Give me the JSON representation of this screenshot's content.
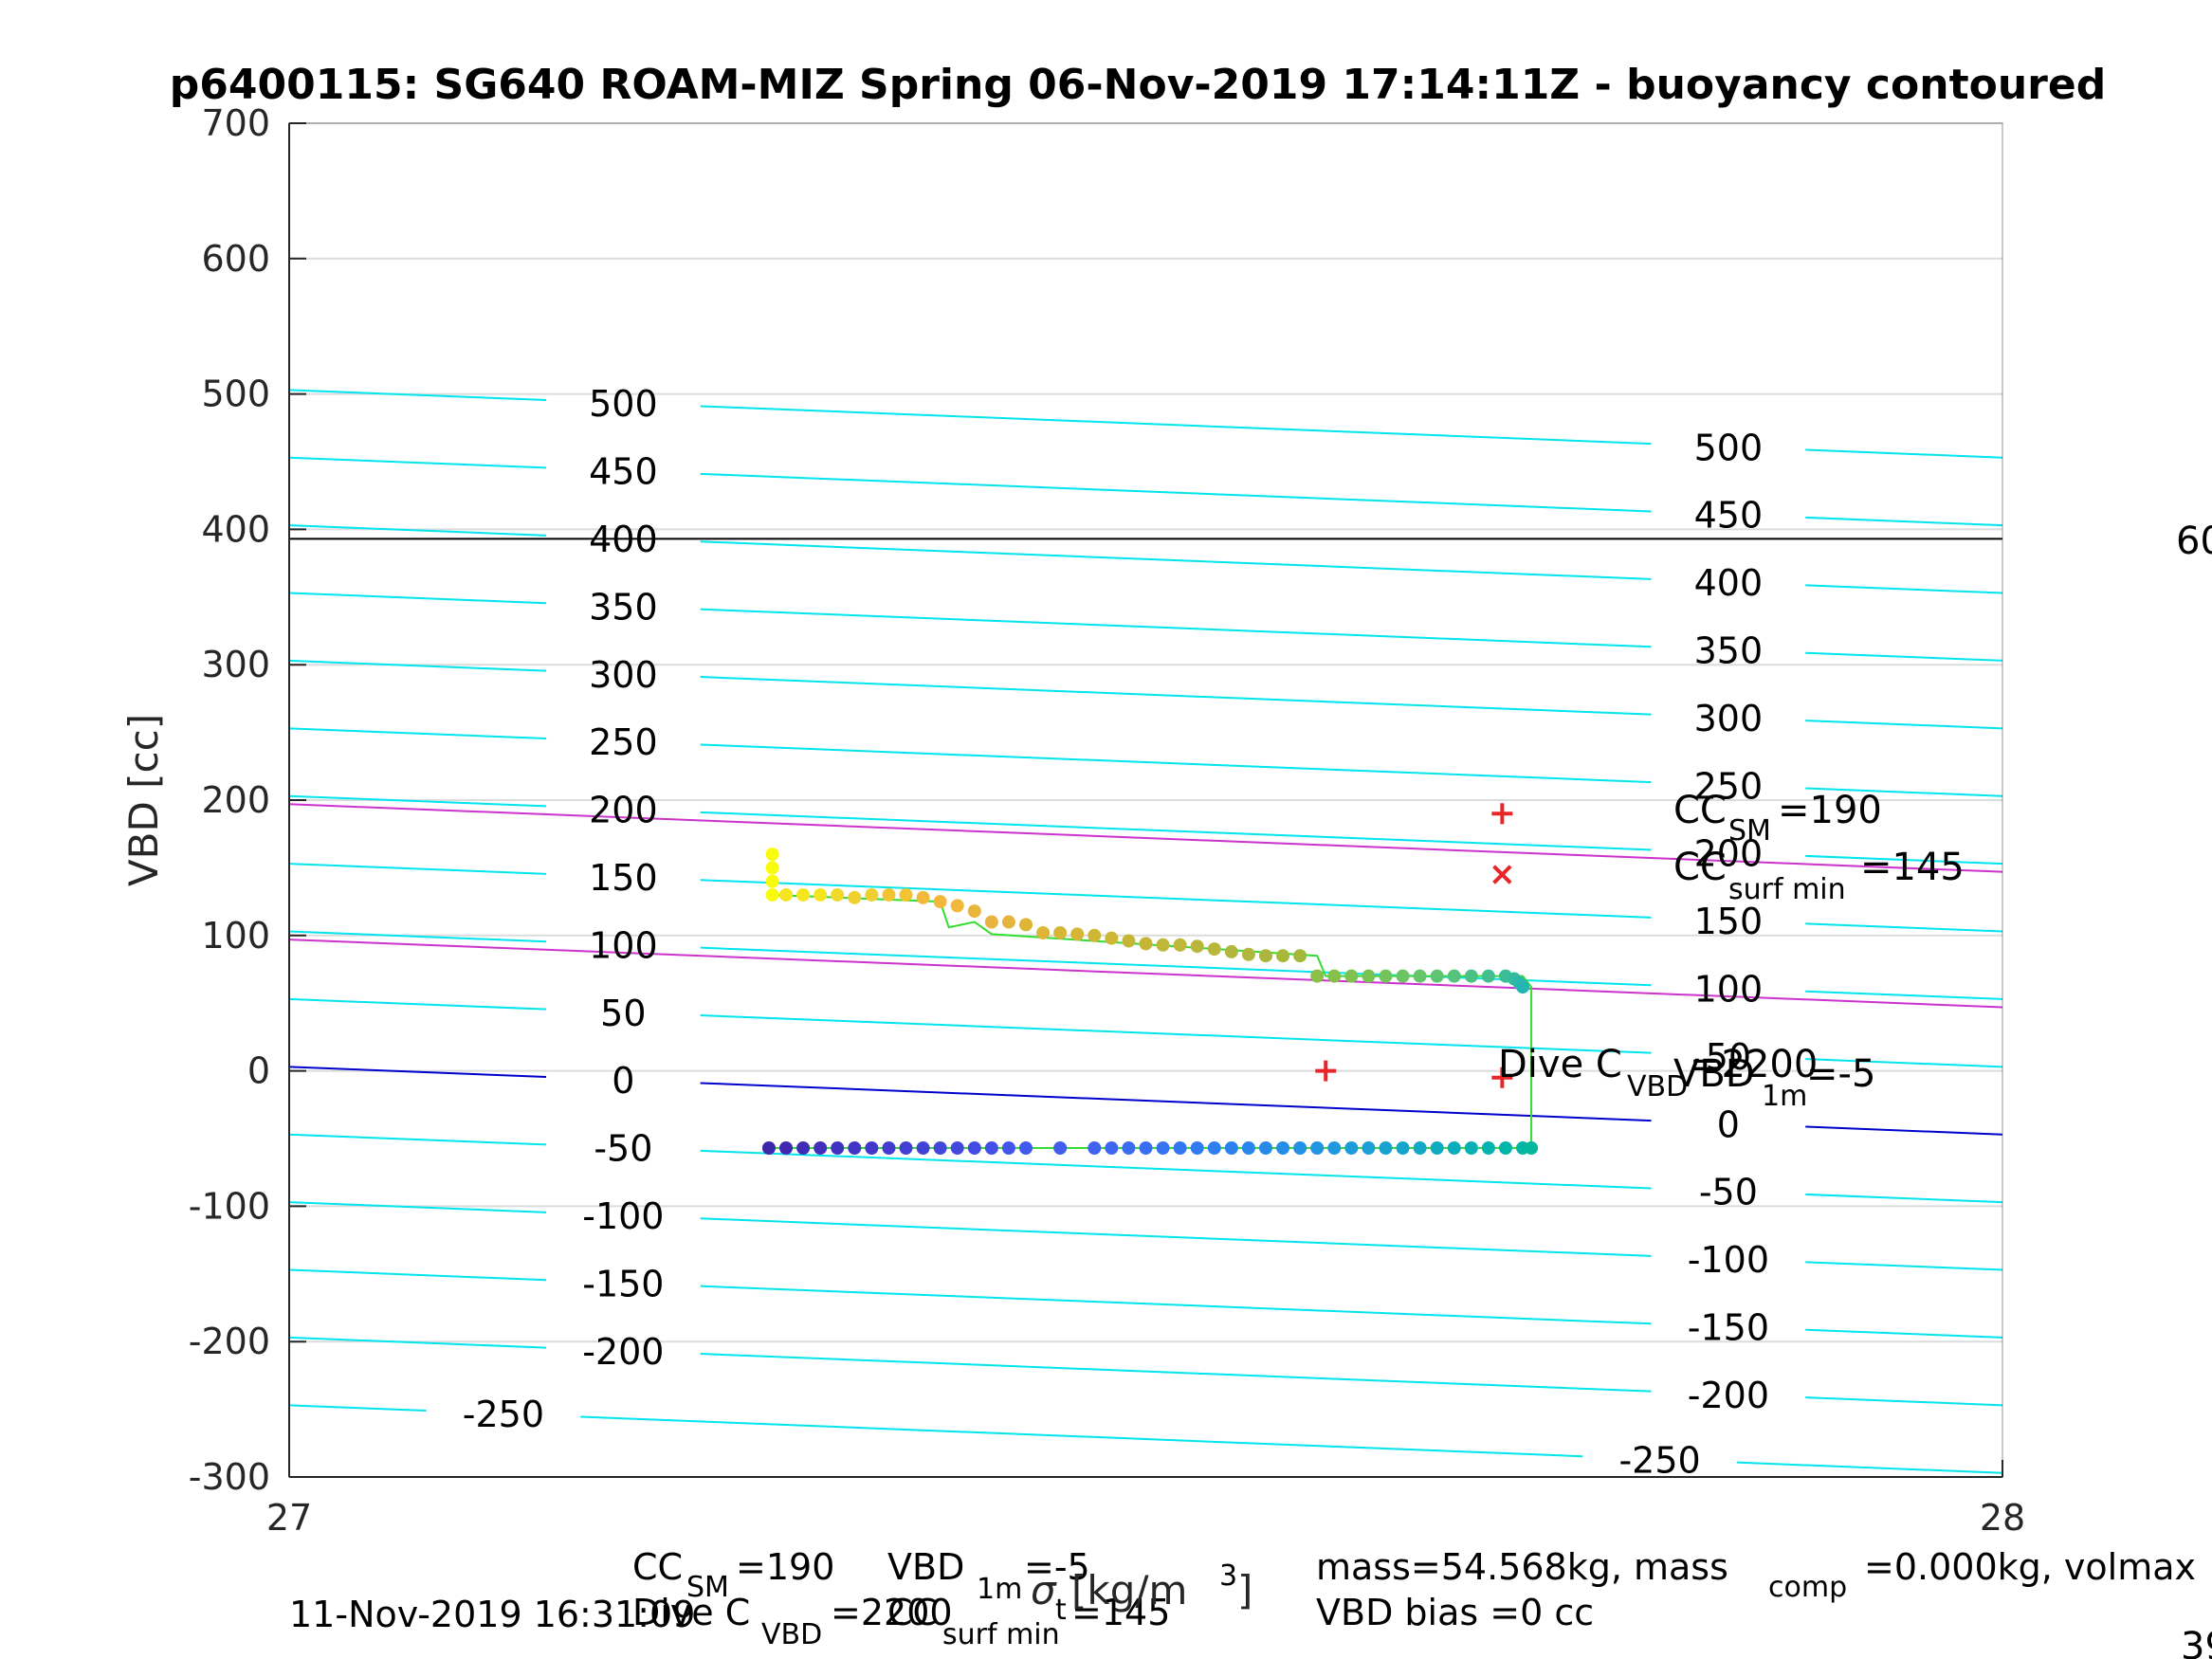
{
  "chart_data": {
    "type": "scatter",
    "title": "p6400115: SG640 ROAM-MIZ Spring 06-Nov-2019 17:14:11Z - buoyancy contoured",
    "xlabel_parts": {
      "main": "σ",
      "sub": "t",
      "unit": "[kg/m",
      "sup": "3",
      "close": "]"
    },
    "ylabel": "VBD [cc]",
    "xlim": [
      27,
      28
    ],
    "ylim": [
      -300,
      700
    ],
    "xticks": [
      "27",
      "28"
    ],
    "yticks": [
      "-300",
      "-200",
      "-100",
      "0",
      "100",
      "200",
      "300",
      "400",
      "500",
      "600",
      "700"
    ],
    "grid": true,
    "colors": {
      "buoyancy_contour": "#00e5ee",
      "neutral_contour": "#0000cc",
      "cc_contour": "#cc33cc",
      "vbd_max_line": "#000000",
      "trace_line": "#33dd33",
      "marker": "#e8262a"
    },
    "buoyancy_contours": {
      "levels": [
        -250,
        -200,
        -150,
        -100,
        -50,
        0,
        50,
        100,
        150,
        200,
        250,
        300,
        350,
        400,
        450,
        500
      ],
      "vbd_at_x27": [
        -247,
        -197,
        -147,
        -97,
        -47,
        3,
        53,
        103,
        153,
        203,
        253,
        303,
        353,
        403,
        453,
        503
      ],
      "vbd_at_x28": [
        -297,
        -247,
        -197,
        -147,
        -97,
        -47,
        3,
        53,
        103,
        153,
        203,
        253,
        303,
        353,
        403,
        453
      ],
      "labels_left": [
        "-250",
        "-200",
        "-150",
        "-100",
        "-50",
        "0",
        "50",
        "100",
        "150",
        "200",
        "250",
        "300",
        "350",
        "400",
        "450",
        "500"
      ],
      "labels_right": [
        "-250",
        "-200",
        "-150",
        "-100",
        "-50",
        "0",
        "50",
        "100",
        "150",
        "200",
        "250",
        "300",
        "350",
        "400",
        "450",
        "500"
      ]
    },
    "cc_contours": {
      "vbd_at_x27": [
        197,
        97
      ],
      "vbd_at_x28": [
        147,
        47
      ]
    },
    "vbd_max_line": {
      "vbd": 393
    },
    "markers": [
      {
        "shape": "+",
        "x": 27.708,
        "y": 190
      },
      {
        "shape": "x",
        "x": 27.708,
        "y": 145
      },
      {
        "shape": "+",
        "x": 27.605,
        "y": 0
      },
      {
        "shape": "+",
        "x": 27.708,
        "y": -5
      }
    ],
    "ascent_series": {
      "name": "ascent",
      "x": [
        27.282,
        27.282,
        27.282,
        27.282,
        27.29,
        27.3,
        27.31,
        27.32,
        27.33,
        27.34,
        27.35,
        27.36,
        27.37,
        27.38,
        27.39,
        27.4,
        27.41,
        27.42,
        27.43,
        27.44,
        27.45,
        27.46,
        27.47,
        27.48,
        27.49,
        27.5,
        27.51,
        27.52,
        27.53,
        27.54,
        27.55,
        27.56,
        27.57,
        27.58,
        27.59,
        27.6,
        27.61,
        27.62,
        27.63,
        27.64,
        27.65,
        27.66,
        27.67,
        27.68,
        27.69,
        27.7,
        27.71,
        27.715,
        27.718,
        27.72
      ],
      "y": [
        160,
        150,
        140,
        130,
        130,
        130,
        130,
        130,
        128,
        130,
        130,
        130,
        128,
        125,
        122,
        118,
        110,
        110,
        108,
        102,
        102,
        101,
        100,
        98,
        96,
        94,
        93,
        93,
        92,
        90,
        88,
        86,
        85,
        85,
        85,
        70,
        70,
        70,
        70,
        70,
        70,
        70,
        70,
        70,
        70,
        70,
        70,
        68,
        65,
        62
      ],
      "colors": [
        "#f9fb0e",
        "#f9fb0e",
        "#f9fb0e",
        "#f9fb0e",
        "#f5e51f",
        "#f5e51f",
        "#f5e51f",
        "#f1d82a",
        "#f1cf30",
        "#f1cf30",
        "#f3c331",
        "#f3c331",
        "#f1b839",
        "#f1b839",
        "#f1b839",
        "#eab53c",
        "#e8b33f",
        "#e4b43c",
        "#ddb537",
        "#ddb537",
        "#d5b636",
        "#d5b636",
        "#ceb637",
        "#ceb637",
        "#c6b638",
        "#c6b638",
        "#bfb73a",
        "#bfb73a",
        "#b8b63b",
        "#b8b63b",
        "#b1b63c",
        "#b1b63c",
        "#aab63c",
        "#a7b83a",
        "#a4b93b",
        "#8bbf47",
        "#86c04b",
        "#80c150",
        "#79c355",
        "#73c45b",
        "#6dc462",
        "#66c46a",
        "#5ec472",
        "#55c37b",
        "#4cc184",
        "#43bf8d",
        "#3bbd96",
        "#33bb9f",
        "#2bb8a8",
        "#24b4b1"
      ]
    },
    "descent_series": {
      "name": "descent",
      "x": [
        27.28,
        27.29,
        27.3,
        27.31,
        27.32,
        27.33,
        27.34,
        27.35,
        27.36,
        27.37,
        27.38,
        27.39,
        27.4,
        27.41,
        27.42,
        27.43,
        27.45,
        27.47,
        27.48,
        27.49,
        27.5,
        27.51,
        27.52,
        27.53,
        27.54,
        27.55,
        27.56,
        27.57,
        27.58,
        27.59,
        27.6,
        27.61,
        27.62,
        27.63,
        27.64,
        27.65,
        27.66,
        27.67,
        27.68,
        27.69,
        27.7,
        27.71,
        27.72,
        27.725
      ],
      "y": [
        -57,
        -57,
        -57,
        -57,
        -57,
        -57,
        -57,
        -57,
        -57,
        -57,
        -57,
        -57,
        -57,
        -57,
        -57,
        -57,
        -57,
        -57,
        -57,
        -57,
        -57,
        -57,
        -57,
        -57,
        -57,
        -57,
        -57,
        -57,
        -57,
        -57,
        -57,
        -57,
        -57,
        -57,
        -57,
        -57,
        -57,
        -57,
        -57,
        -57,
        -57,
        -57,
        -57,
        -57
      ],
      "colors": [
        "#3e26a8",
        "#3f28af",
        "#402bb5",
        "#412eba",
        "#4131c0",
        "#4235c5",
        "#4238ca",
        "#423bcf",
        "#433fd3",
        "#4342d7",
        "#4346db",
        "#4349df",
        "#434ce2",
        "#4350e5",
        "#4356e9",
        "#425aeb",
        "#415eed",
        "#4062ef",
        "#3e66f0",
        "#3c6af1",
        "#3a6ef2",
        "#3772f2",
        "#3476f2",
        "#317af1",
        "#2e7ef0",
        "#2b82ee",
        "#2886ed",
        "#268aeb",
        "#248de8",
        "#2391e5",
        "#2195e2",
        "#1f98de",
        "#1d9cda",
        "#1b9fd5",
        "#18a2d0",
        "#15a5cb",
        "#12a8c6",
        "#0eabc0",
        "#0aadbb",
        "#07b0b5",
        "#04b2af",
        "#02b4aa",
        "#03b6a4",
        "#05b79f"
      ]
    },
    "trace_line": {
      "x": [
        27.282,
        27.38,
        27.385,
        27.4,
        27.41,
        27.6,
        27.605,
        27.72,
        27.725,
        27.725,
        27.28
      ],
      "y": [
        130,
        125,
        106,
        110,
        101,
        85,
        70,
        70,
        62,
        -57,
        -57
      ]
    },
    "annotations": {
      "cc_sm": {
        "main": "CC",
        "sub": "SM",
        "value": "=190"
      },
      "cc_surf_min": {
        "main": "CC",
        "sub": "surf min",
        "value": "=145"
      },
      "dive_c_vbd": {
        "main": "Dive C",
        "sub": "VBD",
        "value": "=2200"
      },
      "vbd_1m": {
        "main": "VBD",
        "sub": "1m",
        "value": "=-5"
      },
      "right_edge_top": "60",
      "right_edge_bottom": "39"
    },
    "footer": {
      "timestamp": "11-Nov-2019 16:31:09",
      "cc_sm": {
        "main": "CC",
        "sub": "SM",
        "value": "=190"
      },
      "vbd_1m": {
        "main": "VBD",
        "sub": "1m",
        "value": "=-5"
      },
      "dive_c_vbd": {
        "main": "Dive C",
        "sub": "VBD",
        "value": "=2200"
      },
      "cc_surf_min": {
        "main": "CC",
        "sub": "surf min",
        "value": "=145"
      },
      "mass_line": {
        "part1": "mass=54.568kg, mass",
        "sub": "comp",
        "part2": "=0.000kg, volmax"
      },
      "vbd_bias": "VBD bias =0 cc"
    }
  }
}
